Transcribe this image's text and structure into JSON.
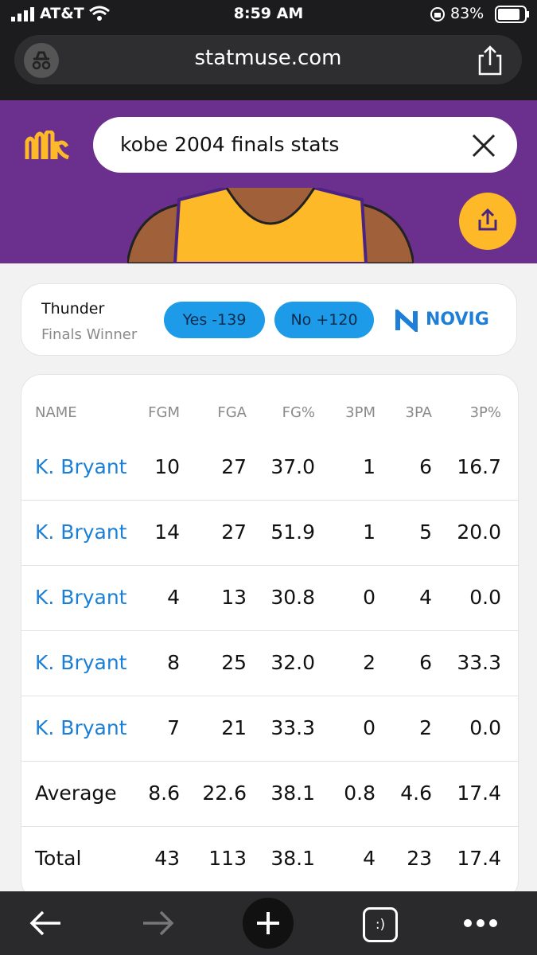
{
  "status_bar": {
    "carrier": "AT&T",
    "time": "8:59 AM",
    "battery": "83%"
  },
  "browser": {
    "url": "statmuse.com"
  },
  "search": {
    "query": "kobe 2004 finals stats"
  },
  "bet": {
    "team": "Thunder",
    "market": "Finals Winner",
    "yes": "Yes -139",
    "no": "No +120",
    "brand": "NOVIG"
  },
  "table": {
    "columns": [
      "NAME",
      "FGM",
      "FGA",
      "FG%",
      "3PM",
      "3PA",
      "3P%"
    ],
    "rows": [
      [
        "K. Bryant",
        "10",
        "27",
        "37.0",
        "1",
        "6",
        "16.7"
      ],
      [
        "K. Bryant",
        "14",
        "27",
        "51.9",
        "1",
        "5",
        "20.0"
      ],
      [
        "K. Bryant",
        "4",
        "13",
        "30.8",
        "0",
        "4",
        "0.0"
      ],
      [
        "K. Bryant",
        "8",
        "25",
        "32.0",
        "2",
        "6",
        "33.3"
      ],
      [
        "K. Bryant",
        "7",
        "21",
        "33.3",
        "0",
        "2",
        "0.0"
      ],
      [
        "Average",
        "8.6",
        "22.6",
        "38.1",
        "0.8",
        "4.6",
        "17.4"
      ],
      [
        "Total",
        "43",
        "113",
        "38.1",
        "4",
        "23",
        "17.4"
      ]
    ]
  },
  "toolbar": {
    "tabs": ":)"
  }
}
